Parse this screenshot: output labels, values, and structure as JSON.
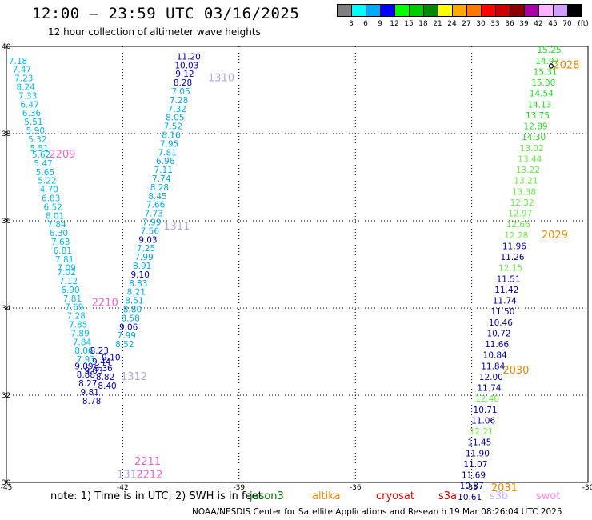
{
  "title": "12:00 – 23:59 UTC 03/16/2025",
  "subtitle": "12 hour collection of altimeter wave heights",
  "colorbar": {
    "units": "(ft)",
    "colors": [
      "#7f7f7f",
      "#00ffff",
      "#00aaff",
      "#0000ff",
      "#00ff00",
      "#00cc00",
      "#008800",
      "#ffff00",
      "#ffaa00",
      "#ff7700",
      "#ff0000",
      "#cc0000",
      "#880000",
      "#aa00aa",
      "#ffb3ff",
      "#d0a0ff",
      "#000000"
    ],
    "labels": [
      "3",
      "6",
      "9",
      "12",
      "15",
      "18",
      "21",
      "24",
      "27",
      "30",
      "33",
      "36",
      "39",
      "42",
      "45",
      "70"
    ]
  },
  "chart_data": {
    "type": "scatter",
    "xlim": [
      -45,
      -30
    ],
    "ylim": [
      30,
      40
    ],
    "x_ticks": [
      "-45",
      "-42",
      "-39",
      "-36",
      "-33",
      "-30"
    ],
    "y_ticks": [
      "40",
      "38",
      "36",
      "34",
      "32",
      "30"
    ],
    "grid": true,
    "tracks": [
      {
        "color": "#00bbee",
        "points": [
          {
            "lon": -44.7,
            "lat": 39.6,
            "v": "7.18"
          },
          {
            "lon": -44.6,
            "lat": 39.4,
            "v": "7.47"
          },
          {
            "lon": -44.55,
            "lat": 39.2,
            "v": "7.23"
          },
          {
            "lon": -44.5,
            "lat": 39.0,
            "v": "8.24"
          },
          {
            "lon": -44.45,
            "lat": 38.8,
            "v": "7.33"
          },
          {
            "lon": -44.4,
            "lat": 38.6,
            "v": "6.47"
          },
          {
            "lon": -44.35,
            "lat": 38.4,
            "v": "6.36"
          },
          {
            "lon": -44.3,
            "lat": 38.2,
            "v": "5.51"
          },
          {
            "lon": -44.25,
            "lat": 38.0,
            "v": "5.90"
          },
          {
            "lon": -44.2,
            "lat": 37.8,
            "v": "5.32"
          },
          {
            "lon": -44.15,
            "lat": 37.6,
            "v": "5.51"
          },
          {
            "lon": -44.1,
            "lat": 37.45,
            "v": "5.62"
          },
          {
            "lon": -44.05,
            "lat": 37.25,
            "v": "5.47"
          },
          {
            "lon": -44.0,
            "lat": 37.05,
            "v": "5.65"
          },
          {
            "lon": -43.95,
            "lat": 36.85,
            "v": "5.22"
          },
          {
            "lon": -43.9,
            "lat": 36.65,
            "v": "4.70"
          },
          {
            "lon": -43.85,
            "lat": 36.45,
            "v": "6.83"
          },
          {
            "lon": -43.8,
            "lat": 36.25,
            "v": "6.52"
          },
          {
            "lon": -43.75,
            "lat": 36.05,
            "v": "8.01"
          },
          {
            "lon": -43.7,
            "lat": 35.85,
            "v": "7.84"
          },
          {
            "lon": -43.65,
            "lat": 35.65,
            "v": "6.30"
          },
          {
            "lon": -43.6,
            "lat": 35.45,
            "v": "7.63"
          },
          {
            "lon": -43.55,
            "lat": 35.25,
            "v": "6.81"
          },
          {
            "lon": -43.5,
            "lat": 35.05,
            "v": "7.81"
          },
          {
            "lon": -43.45,
            "lat": 34.85,
            "v": "7.09"
          },
          {
            "lon": -43.45,
            "lat": 34.75,
            "v": "7.02"
          },
          {
            "lon": -43.4,
            "lat": 34.55,
            "v": "7.12"
          },
          {
            "lon": -43.35,
            "lat": 34.35,
            "v": "6.90"
          },
          {
            "lon": -43.3,
            "lat": 34.15,
            "v": "7.81"
          },
          {
            "lon": -43.25,
            "lat": 33.95,
            "v": "7.69"
          },
          {
            "lon": -43.2,
            "lat": 33.75,
            "v": "7.28"
          },
          {
            "lon": -43.15,
            "lat": 33.55,
            "v": "7.85"
          },
          {
            "lon": -43.1,
            "lat": 33.35,
            "v": "7.89"
          },
          {
            "lon": -43.05,
            "lat": 33.15,
            "v": "7.84"
          },
          {
            "lon": -43.0,
            "lat": 32.95,
            "v": "8.06"
          },
          {
            "lon": -42.95,
            "lat": 32.75,
            "v": "7.93"
          }
        ]
      },
      {
        "color": "#0000cc",
        "points": [
          {
            "lon": -42.3,
            "lat": 32.8,
            "v": "9.10"
          },
          {
            "lon": -42.5,
            "lat": 32.55,
            "v": "8.36"
          },
          {
            "lon": -42.45,
            "lat": 32.35,
            "v": "8.82"
          },
          {
            "lon": -42.4,
            "lat": 32.15,
            "v": "8.40"
          },
          {
            "lon": -42.6,
            "lat": 32.95,
            "v": "8.23"
          },
          {
            "lon": -42.55,
            "lat": 32.7,
            "v": "9.44"
          },
          {
            "lon": -43.0,
            "lat": 32.6,
            "v": "9.09"
          },
          {
            "lon": -42.95,
            "lat": 32.4,
            "v": "8.88"
          },
          {
            "lon": -42.9,
            "lat": 32.2,
            "v": "8.27"
          },
          {
            "lon": -42.85,
            "lat": 32.0,
            "v": "9.81"
          },
          {
            "lon": -42.8,
            "lat": 31.8,
            "v": "8.78"
          },
          {
            "lon": -42.75,
            "lat": 32.5,
            "v": "9.03"
          }
        ]
      },
      {
        "color": "#0000cc",
        "points": [
          {
            "lon": -40.3,
            "lat": 39.7,
            "v": "11.20"
          },
          {
            "lon": -40.35,
            "lat": 39.5,
            "v": "10.03"
          },
          {
            "lon": -40.4,
            "lat": 39.3,
            "v": "9.12"
          },
          {
            "lon": -40.45,
            "lat": 39.1,
            "v": "8.28"
          }
        ]
      },
      {
        "color": "#00aaee",
        "points": [
          {
            "lon": -40.5,
            "lat": 38.9,
            "v": "7.05"
          },
          {
            "lon": -40.55,
            "lat": 38.7,
            "v": "7.28"
          },
          {
            "lon": -40.6,
            "lat": 38.5,
            "v": "7.32"
          },
          {
            "lon": -40.65,
            "lat": 38.3,
            "v": "8.05"
          },
          {
            "lon": -40.7,
            "lat": 38.1,
            "v": "7.52"
          },
          {
            "lon": -40.75,
            "lat": 37.9,
            "v": "8.16"
          },
          {
            "lon": -40.8,
            "lat": 37.7,
            "v": "7.95"
          },
          {
            "lon": -40.85,
            "lat": 37.5,
            "v": "7.81"
          },
          {
            "lon": -40.9,
            "lat": 37.3,
            "v": "6.96"
          },
          {
            "lon": -40.95,
            "lat": 37.1,
            "v": "7.11"
          },
          {
            "lon": -41.0,
            "lat": 36.9,
            "v": "7.74"
          },
          {
            "lon": -41.05,
            "lat": 36.7,
            "v": "8.28"
          },
          {
            "lon": -41.1,
            "lat": 36.5,
            "v": "8.45"
          },
          {
            "lon": -41.15,
            "lat": 36.3,
            "v": "7.66"
          },
          {
            "lon": -41.2,
            "lat": 36.1,
            "v": "7.73"
          },
          {
            "lon": -41.25,
            "lat": 35.9,
            "v": "7.99"
          },
          {
            "lon": -41.3,
            "lat": 35.7,
            "v": "7.56"
          }
        ]
      },
      {
        "color": "#0000cc",
        "points": [
          {
            "lon": -41.35,
            "lat": 35.5,
            "v": "9.03"
          }
        ]
      },
      {
        "color": "#00aaee",
        "points": [
          {
            "lon": -41.4,
            "lat": 35.3,
            "v": "7.25"
          },
          {
            "lon": -41.45,
            "lat": 35.1,
            "v": "7.99"
          },
          {
            "lon": -41.5,
            "lat": 34.9,
            "v": "8.91"
          }
        ]
      },
      {
        "color": "#0000cc",
        "points": [
          {
            "lon": -41.55,
            "lat": 34.7,
            "v": "9.10"
          }
        ]
      },
      {
        "color": "#00aaee",
        "points": [
          {
            "lon": -41.6,
            "lat": 34.5,
            "v": "8.83"
          },
          {
            "lon": -41.65,
            "lat": 34.3,
            "v": "8.21"
          },
          {
            "lon": -41.7,
            "lat": 34.1,
            "v": "8.51"
          },
          {
            "lon": -41.75,
            "lat": 33.9,
            "v": "8.80"
          },
          {
            "lon": -41.8,
            "lat": 33.7,
            "v": "8.58"
          }
        ]
      },
      {
        "color": "#0000cc",
        "points": [
          {
            "lon": -41.85,
            "lat": 33.5,
            "v": "9.06"
          }
        ]
      },
      {
        "color": "#00aaee",
        "points": [
          {
            "lon": -41.9,
            "lat": 33.3,
            "v": "7.99"
          },
          {
            "lon": -41.95,
            "lat": 33.1,
            "v": "8.52"
          }
        ]
      },
      {
        "color": "#22dd22",
        "points": [
          {
            "lon": -31.0,
            "lat": 39.85,
            "v": "15.25"
          },
          {
            "lon": -31.05,
            "lat": 39.6,
            "v": "14.97"
          },
          {
            "lon": -31.1,
            "lat": 39.35,
            "v": "15.31"
          },
          {
            "lon": -31.15,
            "lat": 39.1,
            "v": "15.00"
          },
          {
            "lon": -31.2,
            "lat": 38.85,
            "v": "14.54"
          },
          {
            "lon": -31.25,
            "lat": 38.6,
            "v": "14.13"
          },
          {
            "lon": -31.3,
            "lat": 38.35,
            "v": "13.75"
          },
          {
            "lon": -31.35,
            "lat": 38.1,
            "v": "12.89"
          },
          {
            "lon": -31.4,
            "lat": 37.85,
            "v": "14.30"
          }
        ]
      },
      {
        "color": "#66ee44",
        "points": [
          {
            "lon": -31.45,
            "lat": 37.6,
            "v": "13.02"
          },
          {
            "lon": -31.5,
            "lat": 37.35,
            "v": "13.44"
          },
          {
            "lon": -31.55,
            "lat": 37.1,
            "v": "13.22"
          },
          {
            "lon": -31.6,
            "lat": 36.85,
            "v": "13.21"
          },
          {
            "lon": -31.65,
            "lat": 36.6,
            "v": "13.38"
          },
          {
            "lon": -31.7,
            "lat": 36.35,
            "v": "12.32"
          },
          {
            "lon": -31.75,
            "lat": 36.1,
            "v": "12.97"
          },
          {
            "lon": -31.8,
            "lat": 35.85,
            "v": "12.66"
          },
          {
            "lon": -31.85,
            "lat": 35.6,
            "v": "12.28"
          }
        ]
      },
      {
        "color": "#0000aa",
        "points": [
          {
            "lon": -31.9,
            "lat": 35.35,
            "v": "11.96"
          },
          {
            "lon": -31.95,
            "lat": 35.1,
            "v": "11.26"
          }
        ]
      },
      {
        "color": "#66ee44",
        "points": [
          {
            "lon": -32.0,
            "lat": 34.85,
            "v": "12.15"
          }
        ]
      },
      {
        "color": "#0000aa",
        "points": [
          {
            "lon": -32.05,
            "lat": 34.6,
            "v": "11.51"
          },
          {
            "lon": -32.1,
            "lat": 34.35,
            "v": "11.42"
          },
          {
            "lon": -32.15,
            "lat": 34.1,
            "v": "11.74"
          },
          {
            "lon": -32.2,
            "lat": 33.85,
            "v": "11.50"
          },
          {
            "lon": -32.25,
            "lat": 33.6,
            "v": "10.46"
          },
          {
            "lon": -32.3,
            "lat": 33.35,
            "v": "10.72"
          },
          {
            "lon": -32.35,
            "lat": 33.1,
            "v": "11.66"
          },
          {
            "lon": -32.4,
            "lat": 32.85,
            "v": "10.84"
          },
          {
            "lon": -32.45,
            "lat": 32.6,
            "v": "11.84"
          },
          {
            "lon": -32.5,
            "lat": 32.35,
            "v": "12.00"
          },
          {
            "lon": -32.55,
            "lat": 32.1,
            "v": "11.74"
          }
        ]
      },
      {
        "color": "#66ee44",
        "points": [
          {
            "lon": -32.6,
            "lat": 31.85,
            "v": "12.40"
          }
        ]
      },
      {
        "color": "#0000aa",
        "points": [
          {
            "lon": -32.65,
            "lat": 31.6,
            "v": "10.71"
          },
          {
            "lon": -32.7,
            "lat": 31.35,
            "v": "11.06"
          }
        ]
      },
      {
        "color": "#66ee44",
        "points": [
          {
            "lon": -32.75,
            "lat": 31.1,
            "v": "12.21"
          }
        ]
      },
      {
        "color": "#0000aa",
        "points": [
          {
            "lon": -32.8,
            "lat": 30.85,
            "v": "11.45"
          },
          {
            "lon": -32.85,
            "lat": 30.6,
            "v": "11.90"
          },
          {
            "lon": -32.9,
            "lat": 30.35,
            "v": "11.07"
          },
          {
            "lon": -32.95,
            "lat": 30.1,
            "v": "11.69"
          },
          {
            "lon": -33.0,
            "lat": 29.85,
            "v": "10.87"
          },
          {
            "lon": -33.05,
            "lat": 29.6,
            "v": "10.61"
          }
        ]
      }
    ],
    "pass_labels": [
      {
        "text": "1310",
        "color": "#b3a8ee",
        "lon": -39.8,
        "lat": 39.2
      },
      {
        "text": "2209",
        "color": "#ee66cc",
        "lon": -43.9,
        "lat": 37.45
      },
      {
        "text": "1311",
        "color": "#b3a8ee",
        "lon": -40.95,
        "lat": 35.8
      },
      {
        "text": "2210",
        "color": "#ee66cc",
        "lon": -42.8,
        "lat": 34.05
      },
      {
        "text": "1312",
        "color": "#b3a8ee",
        "lon": -42.05,
        "lat": 32.35
      },
      {
        "text": "2211",
        "color": "#ee66cc",
        "lon": -41.7,
        "lat": 30.4
      },
      {
        "text": "1313",
        "color": "#b3a8ee",
        "lon": -42.15,
        "lat": 30.1
      },
      {
        "text": "2212",
        "color": "#ee66cc",
        "lon": -41.65,
        "lat": 30.1
      },
      {
        "text": "2028",
        "color": "#ee8800",
        "lon": -30.9,
        "lat": 39.5
      },
      {
        "text": "2029",
        "color": "#ee8800",
        "lon": -31.2,
        "lat": 35.6
      },
      {
        "text": "2030",
        "color": "#ee8800",
        "lon": -32.2,
        "lat": 32.5
      },
      {
        "text": "2031",
        "color": "#ee8800",
        "lon": -32.5,
        "lat": 29.8
      }
    ],
    "position_marker": {
      "lon": -30.95,
      "lat": 39.55
    }
  },
  "note": "note:  1) Time is in UTC; 2) SWH is in feet",
  "satellites": [
    {
      "name": "jason3",
      "color": "#007700"
    },
    {
      "name": "altika",
      "color": "#ff8800"
    },
    {
      "name": "cryosat",
      "color": "#ee0000"
    },
    {
      "name": "s3a",
      "color": "#cc0000"
    },
    {
      "name": "s3b",
      "color": "#c8b0ff"
    },
    {
      "name": "swot",
      "color": "#ff88ee"
    }
  ],
  "footer": "NOAA/NESDIS Center for Satellite Applications and Research     19 Mar 08:26:04 UTC 2025"
}
